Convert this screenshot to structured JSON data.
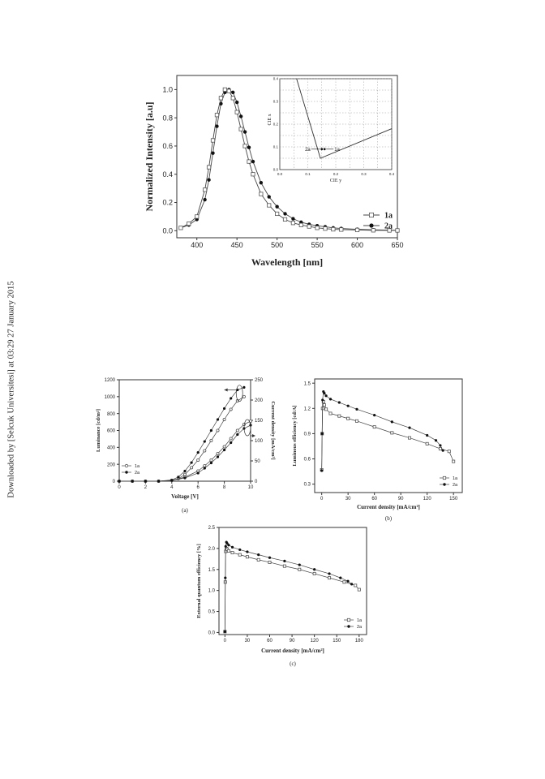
{
  "side_note": "Downloaded by [Selcuk Universitesi] at 03:29 27 January 2015",
  "chart_data": [
    {
      "id": "el-spectrum",
      "type": "scatter",
      "xlabel": "Wavelength [nm]",
      "ylabel": "Normalized Intensity [a.u]",
      "xlim": [
        375,
        650
      ],
      "ylim": [
        -0.05,
        1.1
      ],
      "xticks": [
        "400",
        "450",
        "500",
        "550",
        "600",
        "650"
      ],
      "yticks": [
        "0.0",
        "0.2",
        "0.4",
        "0.6",
        "0.8",
        "1.0"
      ],
      "legend": [
        "1a",
        "2a"
      ],
      "legend_position": "bottom-right",
      "colors": {
        "1a": "#ffffff",
        "2a": "#111111"
      },
      "series": [
        {
          "name": "1a",
          "marker": "open-square",
          "x": [
            380,
            390,
            400,
            410,
            415,
            420,
            425,
            430,
            435,
            440,
            445,
            450,
            455,
            460,
            465,
            470,
            480,
            490,
            500,
            510,
            520,
            530,
            540,
            550,
            560,
            570,
            580,
            600,
            620,
            640,
            650
          ],
          "y": [
            0.02,
            0.05,
            0.1,
            0.29,
            0.45,
            0.64,
            0.82,
            0.94,
            1.0,
            0.99,
            0.94,
            0.84,
            0.72,
            0.6,
            0.49,
            0.4,
            0.26,
            0.18,
            0.12,
            0.08,
            0.055,
            0.04,
            0.03,
            0.02,
            0.015,
            0.01,
            0.008,
            0.005,
            0.003,
            0.002,
            0.002
          ]
        },
        {
          "name": "2a",
          "marker": "filled-circle",
          "x": [
            380,
            390,
            400,
            410,
            415,
            420,
            425,
            430,
            435,
            440,
            445,
            450,
            455,
            460,
            465,
            470,
            480,
            490,
            500,
            510,
            520,
            530,
            540,
            550,
            560,
            570,
            580,
            600,
            620,
            640,
            650
          ],
          "y": [
            0.02,
            0.04,
            0.08,
            0.22,
            0.36,
            0.55,
            0.74,
            0.9,
            0.98,
            1.0,
            0.98,
            0.91,
            0.81,
            0.7,
            0.59,
            0.49,
            0.34,
            0.24,
            0.17,
            0.12,
            0.085,
            0.06,
            0.045,
            0.035,
            0.028,
            0.02,
            0.016,
            0.01,
            0.006,
            0.004,
            0.003
          ]
        }
      ],
      "inset": {
        "type": "line",
        "xlabel": "CIE y",
        "ylabel": "CIE x",
        "xlim": [
          0.0,
          0.4
        ],
        "ylim": [
          0.0,
          0.4
        ],
        "xticks": [
          "0.0",
          "0.1",
          "0.2",
          "0.3",
          "0.4"
        ],
        "yticks": [
          "0.0",
          "0.1",
          "0.2",
          "0.3",
          "0.4"
        ],
        "curve": {
          "x": [
            0.06,
            0.145,
            0.4
          ],
          "y": [
            0.4,
            0.05,
            0.18
          ]
        },
        "points": [
          {
            "name": "2a",
            "x": 0.15,
            "y": 0.09
          },
          {
            "name": "1a",
            "x": 0.16,
            "y": 0.09
          }
        ]
      }
    },
    {
      "id": "luminance-current",
      "caption": "(a)",
      "type": "line",
      "xlabel": "Voltage [V]",
      "ylabel_left": "Luminance [cd/m²]",
      "ylabel_right": "Current density [mA/cm²]",
      "xlim": [
        0,
        10
      ],
      "ylim_left": [
        0,
        1200
      ],
      "ylim_right": [
        0,
        250
      ],
      "xticks": [
        "0",
        "2",
        "4",
        "6",
        "8",
        "10"
      ],
      "yticks_left": [
        "0",
        "200",
        "400",
        "600",
        "800",
        "1000",
        "1200"
      ],
      "yticks_right": [
        "0",
        "50",
        "100",
        "150",
        "200",
        "250"
      ],
      "legend": [
        "1a",
        "2a"
      ],
      "legend_position": "middle-left",
      "series": [
        {
          "name": "1a luminance",
          "axis": "left",
          "marker": "open-circle",
          "x": [
            0,
            1,
            2,
            3,
            4,
            4.5,
            5,
            5.5,
            6,
            6.5,
            7,
            7.5,
            8,
            8.5,
            9,
            9.5
          ],
          "y": [
            0,
            0,
            0,
            0,
            10,
            30,
            80,
            160,
            250,
            360,
            480,
            600,
            730,
            850,
            950,
            1000
          ]
        },
        {
          "name": "2a luminance",
          "axis": "left",
          "marker": "filled-circle",
          "x": [
            0,
            1,
            2,
            3,
            4,
            4.5,
            5,
            5.5,
            6,
            6.5,
            7,
            7.5,
            8,
            8.5,
            9,
            9.5
          ],
          "y": [
            0,
            0,
            0,
            0,
            15,
            50,
            120,
            220,
            340,
            470,
            600,
            730,
            860,
            980,
            1080,
            1110
          ]
        },
        {
          "name": "1a current",
          "axis": "right",
          "marker": "open-circle",
          "x": [
            0,
            1,
            2,
            3,
            4,
            5,
            6,
            6.5,
            7,
            7.5,
            8,
            8.5,
            9,
            9.5,
            10
          ],
          "y": [
            0,
            0,
            0,
            0,
            2,
            10,
            25,
            38,
            52,
            68,
            85,
            105,
            125,
            140,
            148
          ]
        },
        {
          "name": "2a current",
          "axis": "right",
          "marker": "filled-circle",
          "x": [
            0,
            1,
            2,
            3,
            4,
            5,
            6,
            6.5,
            7,
            7.5,
            8,
            8.5,
            9,
            9.5,
            10
          ],
          "y": [
            0,
            0,
            0,
            0,
            2,
            8,
            20,
            32,
            45,
            60,
            77,
            95,
            115,
            130,
            138
          ]
        }
      ]
    },
    {
      "id": "luminous-efficiency",
      "caption": "(b)",
      "type": "line",
      "xlabel": "Current density [mA/cm²]",
      "ylabel": "Luminous efficiency [cd/A]",
      "xlim": [
        -8,
        160
      ],
      "ylim": [
        0.2,
        1.55
      ],
      "xticks": [
        "0",
        "30",
        "60",
        "90",
        "120",
        "150"
      ],
      "yticks": [
        "0.3",
        "0.6",
        "0.9",
        "1.2",
        "1.5"
      ],
      "legend": [
        "1a",
        "2a"
      ],
      "legend_position": "bottom-right",
      "series": [
        {
          "name": "1a",
          "marker": "open-square",
          "x": [
            0,
            0.5,
            1,
            2,
            3,
            5,
            10,
            20,
            30,
            40,
            60,
            80,
            100,
            120,
            135,
            145,
            150
          ],
          "y": [
            0.47,
            0.9,
            1.2,
            1.28,
            1.24,
            1.19,
            1.14,
            1.11,
            1.08,
            1.05,
            0.98,
            0.91,
            0.85,
            0.78,
            0.72,
            0.69,
            0.57
          ]
        },
        {
          "name": "2a",
          "marker": "filled-circle",
          "x": [
            0,
            0.5,
            1,
            2,
            3,
            5,
            10,
            20,
            30,
            40,
            60,
            80,
            100,
            120,
            130,
            135,
            138
          ],
          "y": [
            0.46,
            0.9,
            1.3,
            1.4,
            1.38,
            1.35,
            1.31,
            1.27,
            1.23,
            1.19,
            1.12,
            1.04,
            0.97,
            0.88,
            0.82,
            0.76,
            0.7
          ]
        }
      ]
    },
    {
      "id": "eqe",
      "caption": "(c)",
      "type": "line",
      "xlabel": "Current density [mA/cm²]",
      "ylabel": "External quantum efficiency [%]",
      "xlim": [
        -8,
        190
      ],
      "ylim": [
        -0.05,
        2.5
      ],
      "xticks": [
        "0",
        "30",
        "60",
        "90",
        "120",
        "150",
        "180"
      ],
      "yticks": [
        "0.0",
        "0.5",
        "1.0",
        "1.5",
        "2.0",
        "2.5"
      ],
      "legend": [
        "1a",
        "2a"
      ],
      "legend_position": "bottom-right",
      "series": [
        {
          "name": "1a",
          "marker": "open-square",
          "x": [
            0,
            0.5,
            1,
            2,
            3,
            5,
            10,
            20,
            30,
            45,
            60,
            80,
            100,
            120,
            140,
            160,
            175,
            180
          ],
          "y": [
            0.02,
            1.2,
            1.93,
            2.0,
            1.98,
            1.94,
            1.9,
            1.85,
            1.8,
            1.73,
            1.67,
            1.58,
            1.5,
            1.4,
            1.3,
            1.2,
            1.12,
            1.02
          ]
        },
        {
          "name": "2a",
          "marker": "filled-circle",
          "x": [
            0,
            0.5,
            1,
            2,
            3,
            5,
            10,
            20,
            30,
            45,
            60,
            80,
            100,
            120,
            140,
            155,
            165,
            170
          ],
          "y": [
            0.02,
            1.3,
            2.05,
            2.15,
            2.12,
            2.08,
            2.03,
            1.97,
            1.92,
            1.85,
            1.78,
            1.7,
            1.61,
            1.5,
            1.4,
            1.3,
            1.22,
            1.15
          ]
        }
      ]
    }
  ]
}
